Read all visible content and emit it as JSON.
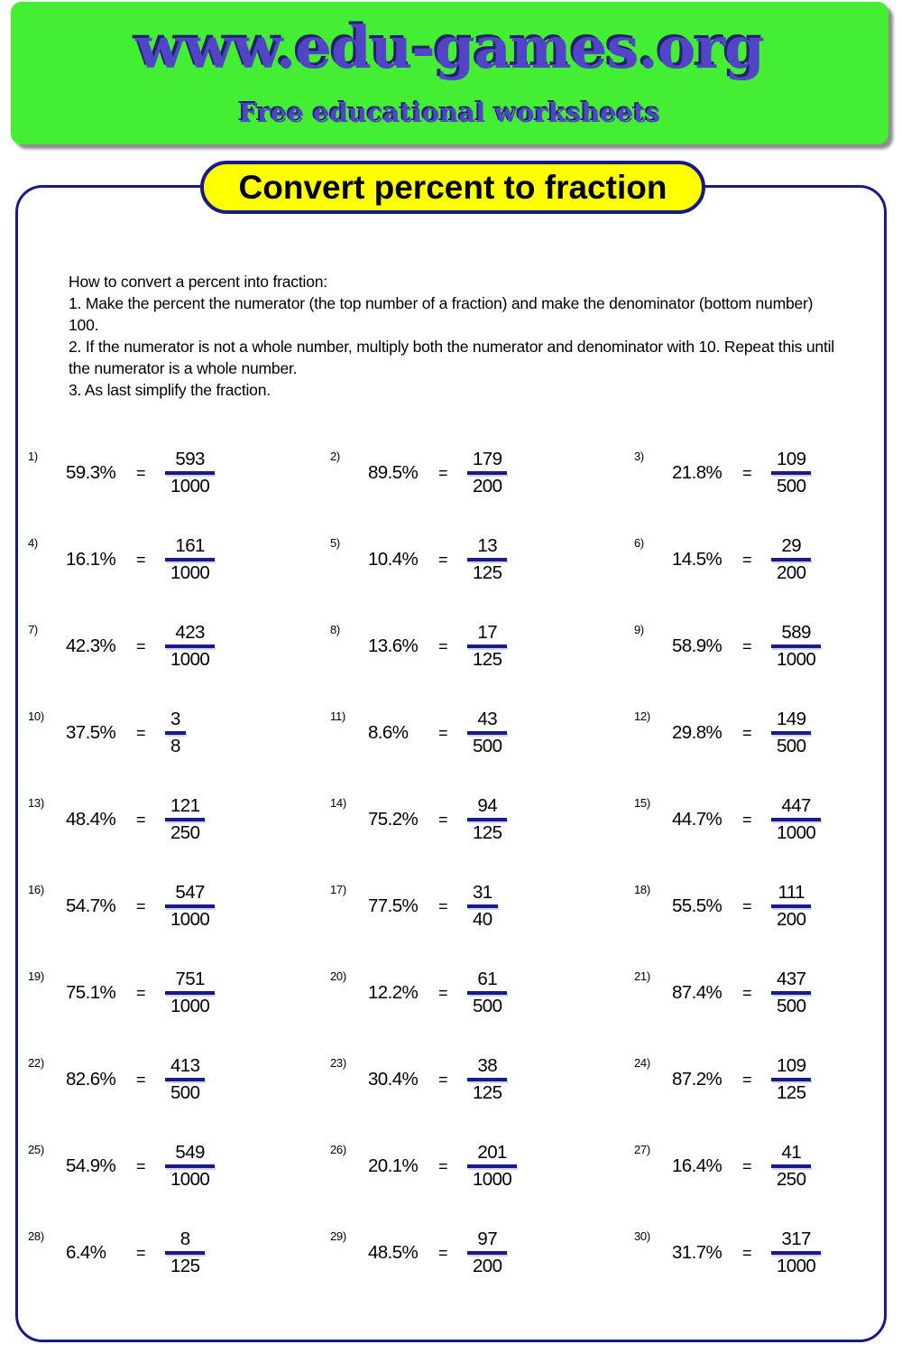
{
  "banner": {
    "title": "www.edu-games.org",
    "subtitle": "Free educational worksheets",
    "bg_color": "#44ee33",
    "text_color": "#5144c8",
    "text_shadow_color": "#1f2468"
  },
  "worksheet": {
    "title": "Convert percent to fraction",
    "title_bg_color": "#ffff00",
    "border_color": "#1a1a86",
    "fraction_bar_color": "#1a1a8c",
    "equals_sign": "=",
    "instructions": [
      "How to convert a percent into fraction:",
      "1. Make the percent the numerator (the top number of a fraction) and make the denominator (bottom number) 100.",
      "2. If the numerator is not a whole number, multiply both the numerator and denominator with 10. Repeat this until the numerator is a whole number.",
      "3. As last simplify the fraction."
    ],
    "problems": [
      {
        "no": "1)",
        "pct": "59.3%",
        "num": "593",
        "den": "1000"
      },
      {
        "no": "2)",
        "pct": "89.5%",
        "num": "179",
        "den": "200"
      },
      {
        "no": "3)",
        "pct": "21.8%",
        "num": "109",
        "den": "500"
      },
      {
        "no": "4)",
        "pct": "16.1%",
        "num": "161",
        "den": "1000"
      },
      {
        "no": "5)",
        "pct": "10.4%",
        "num": "13",
        "den": "125"
      },
      {
        "no": "6)",
        "pct": "14.5%",
        "num": "29",
        "den": "200"
      },
      {
        "no": "7)",
        "pct": "42.3%",
        "num": "423",
        "den": "1000"
      },
      {
        "no": "8)",
        "pct": "13.6%",
        "num": "17",
        "den": "125"
      },
      {
        "no": "9)",
        "pct": "58.9%",
        "num": "589",
        "den": "1000"
      },
      {
        "no": "10)",
        "pct": "37.5%",
        "num": "3",
        "den": "8"
      },
      {
        "no": "11)",
        "pct": "8.6%",
        "num": "43",
        "den": "500"
      },
      {
        "no": "12)",
        "pct": "29.8%",
        "num": "149",
        "den": "500"
      },
      {
        "no": "13)",
        "pct": "48.4%",
        "num": "121",
        "den": "250"
      },
      {
        "no": "14)",
        "pct": "75.2%",
        "num": "94",
        "den": "125"
      },
      {
        "no": "15)",
        "pct": "44.7%",
        "num": "447",
        "den": "1000"
      },
      {
        "no": "16)",
        "pct": "54.7%",
        "num": "547",
        "den": "1000"
      },
      {
        "no": "17)",
        "pct": "77.5%",
        "num": "31",
        "den": "40"
      },
      {
        "no": "18)",
        "pct": "55.5%",
        "num": "111",
        "den": "200"
      },
      {
        "no": "19)",
        "pct": "75.1%",
        "num": "751",
        "den": "1000"
      },
      {
        "no": "20)",
        "pct": "12.2%",
        "num": "61",
        "den": "500"
      },
      {
        "no": "21)",
        "pct": "87.4%",
        "num": "437",
        "den": "500"
      },
      {
        "no": "22)",
        "pct": "82.6%",
        "num": "413",
        "den": "500"
      },
      {
        "no": "23)",
        "pct": "30.4%",
        "num": "38",
        "den": "125"
      },
      {
        "no": "24)",
        "pct": "87.2%",
        "num": "109",
        "den": "125"
      },
      {
        "no": "25)",
        "pct": "54.9%",
        "num": "549",
        "den": "1000"
      },
      {
        "no": "26)",
        "pct": "20.1%",
        "num": "201",
        "den": "1000"
      },
      {
        "no": "27)",
        "pct": "16.4%",
        "num": "41",
        "den": "250"
      },
      {
        "no": "28)",
        "pct": "6.4%",
        "num": "8",
        "den": "125"
      },
      {
        "no": "29)",
        "pct": "48.5%",
        "num": "97",
        "den": "200"
      },
      {
        "no": "30)",
        "pct": "31.7%",
        "num": "317",
        "den": "1000"
      }
    ]
  }
}
